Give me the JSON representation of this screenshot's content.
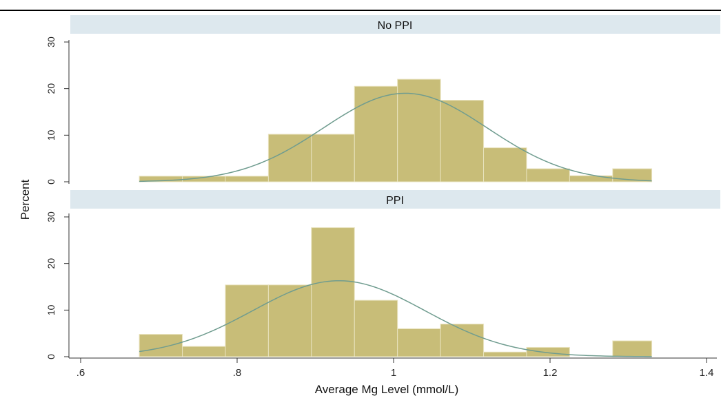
{
  "chart_data": {
    "type": "bar",
    "xlabel": "Average Mg Level (mmol/L)",
    "ylabel": "Percent",
    "xlim": [
      0.6,
      1.4
    ],
    "ylim": [
      0,
      30
    ],
    "x_ticks": [
      ".6",
      ".8",
      "1",
      "1.2",
      "1.4"
    ],
    "y_ticks": [
      "0",
      "10",
      "20",
      "30"
    ],
    "bin_edges": [
      0.675,
      0.73,
      0.785,
      0.84,
      0.895,
      0.95,
      1.005,
      1.06,
      1.115,
      1.17,
      1.225,
      1.28,
      1.33
    ],
    "bar_color": "#c8bd78",
    "curve_color": "#6f9c8f",
    "strip_color": "#dde8ee",
    "panels": [
      {
        "title": "No PPI",
        "values": [
          1.2,
          1.2,
          1.2,
          10.2,
          10.2,
          20.5,
          22.0,
          17.5,
          7.3,
          2.8,
          1.3,
          2.8
        ],
        "normal_fit": {
          "mean": 1.015,
          "sd": 0.105,
          "peak": 19.0
        }
      },
      {
        "title": "PPI",
        "values": [
          4.8,
          2.2,
          15.4,
          15.4,
          27.7,
          12.1,
          6.0,
          7.0,
          1.0,
          2.0,
          0,
          3.4
        ],
        "normal_fit": {
          "mean": 0.93,
          "sd": 0.11,
          "peak": 16.3
        }
      }
    ]
  }
}
